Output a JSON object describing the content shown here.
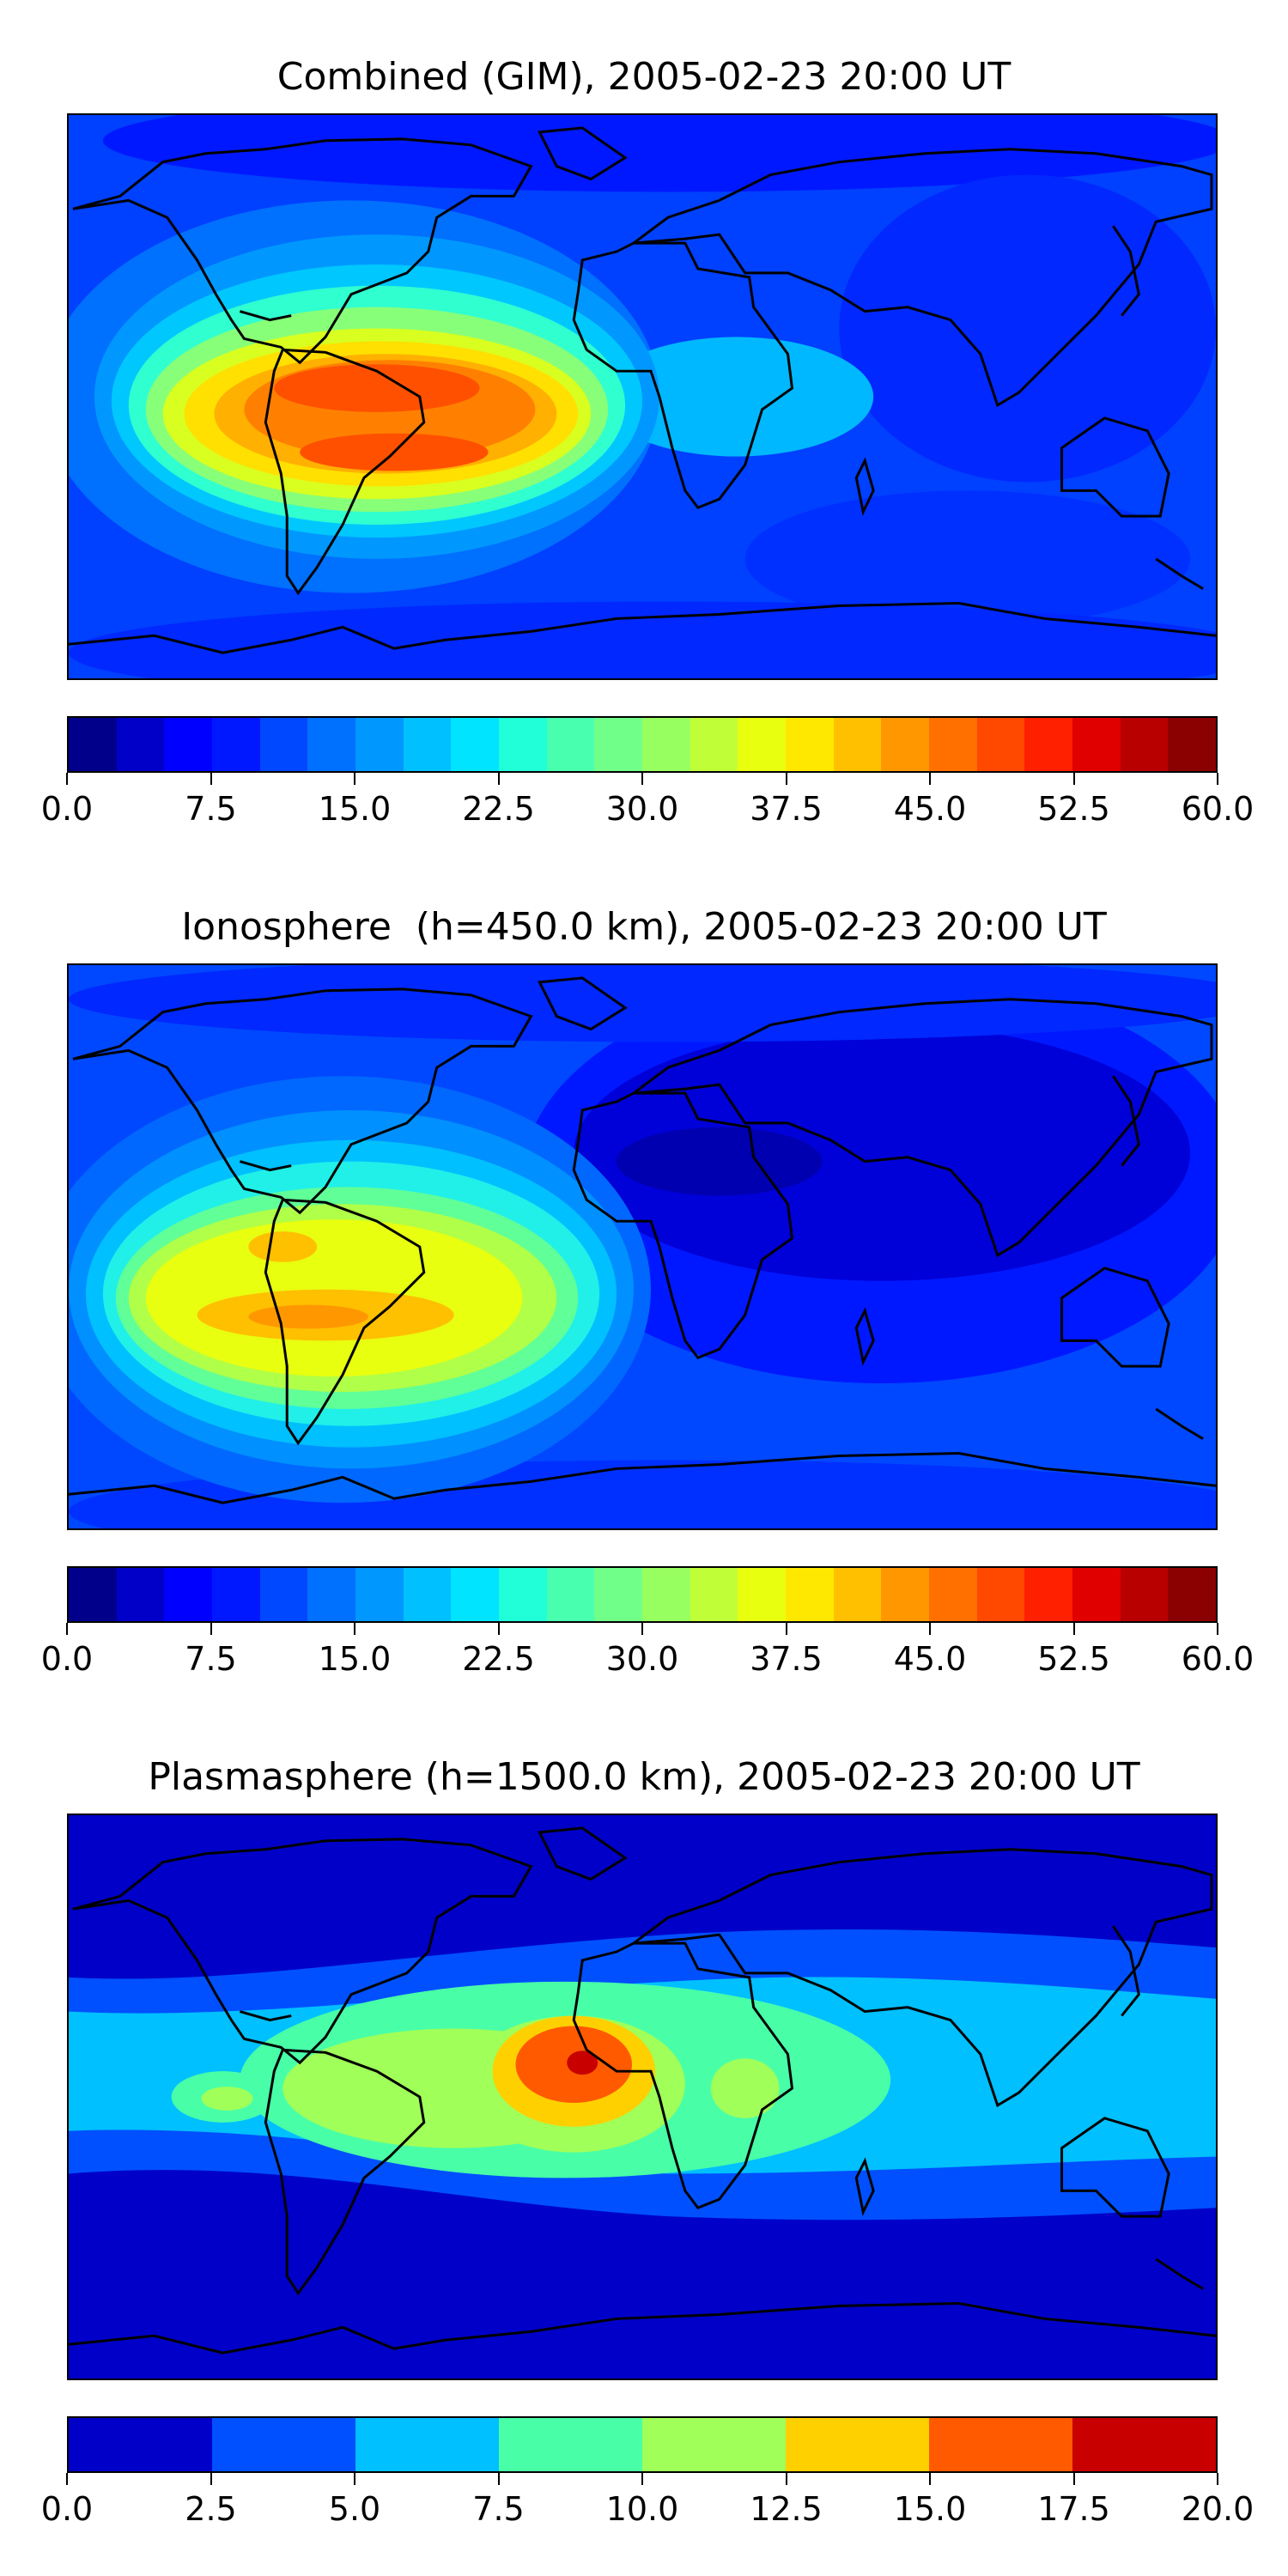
{
  "panels": [
    {
      "title": "Combined (GIM), 2005-02-23 20:00 UT",
      "colorbar": {
        "ticks": [
          "0.0",
          "7.5",
          "15.0",
          "22.5",
          "30.0",
          "37.5",
          "45.0",
          "52.5",
          "60.0"
        ],
        "colors": [
          "#00008b",
          "#0000c8",
          "#0000ff",
          "#0018ff",
          "#0048ff",
          "#0070ff",
          "#0098ff",
          "#00c0ff",
          "#00e4ff",
          "#20ffd8",
          "#48ffb0",
          "#70ff88",
          "#98ff60",
          "#c0ff38",
          "#e8ff10",
          "#ffe800",
          "#ffc000",
          "#ff9800",
          "#ff7000",
          "#ff4800",
          "#ff2000",
          "#e00000",
          "#b80000",
          "#8b0000"
        ]
      }
    },
    {
      "title": "Ionosphere  (h=450.0 km), 2005-02-23 20:00 UT",
      "colorbar": {
        "ticks": [
          "0.0",
          "7.5",
          "15.0",
          "22.5",
          "30.0",
          "37.5",
          "45.0",
          "52.5",
          "60.0"
        ],
        "colors": [
          "#00008b",
          "#0000c8",
          "#0000ff",
          "#0018ff",
          "#0048ff",
          "#0070ff",
          "#0098ff",
          "#00c0ff",
          "#00e4ff",
          "#20ffd8",
          "#48ffb0",
          "#70ff88",
          "#98ff60",
          "#c0ff38",
          "#e8ff10",
          "#ffe800",
          "#ffc000",
          "#ff9800",
          "#ff7000",
          "#ff4800",
          "#ff2000",
          "#e00000",
          "#b80000",
          "#8b0000"
        ]
      }
    },
    {
      "title": "Plasmasphere (h=1500.0 km), 2005-02-23 20:00 UT",
      "colorbar": {
        "ticks": [
          "0.0",
          "2.5",
          "5.0",
          "7.5",
          "10.0",
          "12.5",
          "15.0",
          "17.5",
          "20.0"
        ],
        "colors": [
          "#0000c8",
          "#0050ff",
          "#00c0ff",
          "#48ffa8",
          "#a0ff58",
          "#ffd000",
          "#ff5a00",
          "#c80000"
        ]
      }
    }
  ]
}
